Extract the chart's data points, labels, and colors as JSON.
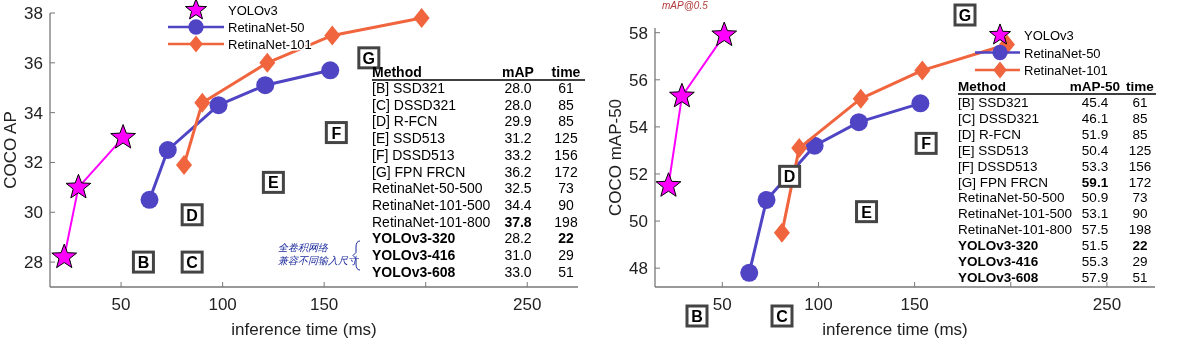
{
  "chart_data": [
    {
      "type": "line",
      "xlabel": "inference time (ms)",
      "ylabel": "COCO AP",
      "xlim": [
        15,
        275
      ],
      "ylim": [
        27,
        38
      ],
      "xticks": [
        50,
        100,
        150,
        {
          "value": 200,
          "label": null
        },
        250
      ],
      "yticks": [
        28,
        30,
        32,
        34,
        36,
        38
      ],
      "legend": "top left",
      "grid": false,
      "series": [
        {
          "name": "YOLOv3",
          "color": "#ff00ff",
          "marker": "star",
          "x": [
            22,
            29,
            51
          ],
          "values": [
            28.2,
            31.0,
            33.0
          ]
        },
        {
          "name": "RetinaNet-50",
          "color": "#4f44c4",
          "marker": "circle",
          "x": [
            64,
            73,
            98,
            121,
            153
          ],
          "values": [
            30.5,
            32.5,
            34.3,
            35.1,
            35.7
          ]
        },
        {
          "name": "RetinaNet-101",
          "color": "#f0653e",
          "marker": "diamond",
          "x": [
            81,
            90,
            122,
            154,
            198
          ],
          "values": [
            31.9,
            34.4,
            36.0,
            37.1,
            37.8
          ]
        }
      ],
      "annotations": [
        {
          "text": "B",
          "x": 61,
          "y": 28.0
        },
        {
          "text": "C",
          "x": 85,
          "y": 28.0
        },
        {
          "text": "D",
          "x": 85,
          "y": 29.9
        },
        {
          "text": "E",
          "x": 125,
          "y": 31.2
        },
        {
          "text": "F",
          "x": 156,
          "y": 33.2
        },
        {
          "text": "G",
          "x": 172,
          "y": 36.2
        },
        "全卷积网络",
        "兼容不同输入尺寸"
      ]
    },
    {
      "type": "other",
      "annotations": [
        "Method",
        "mAP",
        "time",
        "[B] SSD321",
        "28.0",
        "61",
        "[C] DSSD321",
        "28.0",
        "85",
        "[D] R-FCN",
        "29.9",
        "85",
        "[E] SSD513",
        "31.2",
        "125",
        "[F] DSSD513",
        "33.2",
        "156",
        "[G] FPN FRCN",
        "36.2",
        "172",
        "RetinaNet-50-500",
        "32.5",
        "73",
        "RetinaNet-101-500",
        "34.4",
        "90",
        "RetinaNet-101-800",
        "37.8",
        "198",
        "YOLOv3-320",
        "28.2",
        "22",
        "YOLOv3-416",
        "31.0",
        "29",
        "YOLOv3-608",
        "33.0",
        "51"
      ]
    },
    {
      "type": "line",
      "xlabel": "inference time (ms)",
      "ylabel": "COCO mAP-50",
      "xlim": [
        15,
        275
      ],
      "ylim": [
        47.2,
        58.2
      ],
      "xticks": [
        50,
        100,
        150,
        {
          "value": 200,
          "label": null
        },
        250
      ],
      "yticks": [
        48,
        50,
        52,
        54,
        56,
        58
      ],
      "legend": "top right",
      "grid": false,
      "series": [
        {
          "name": "YOLOv3",
          "color": "#ff00ff",
          "marker": "star",
          "x": [
            22,
            29,
            51
          ],
          "values": [
            51.5,
            55.3,
            57.9
          ]
        },
        {
          "name": "RetinaNet-50",
          "color": "#4f44c4",
          "marker": "circle",
          "x": [
            64,
            73,
            98,
            121,
            153
          ],
          "values": [
            47.8,
            50.9,
            53.2,
            54.2,
            55.0
          ]
        },
        {
          "name": "RetinaNet-101",
          "color": "#f0653e",
          "marker": "diamond",
          "x": [
            81,
            90,
            122,
            154,
            198
          ],
          "values": [
            49.5,
            53.1,
            55.2,
            56.4,
            57.5
          ]
        }
      ],
      "annotations": [
        {
          "text": "D",
          "x": 85,
          "y": 51.9
        },
        {
          "text": "E",
          "x": 125,
          "y": 50.4
        },
        {
          "text": "F",
          "x": 156,
          "y": 53.3
        },
        "B",
        "C",
        "G",
        "mAP@0.5"
      ]
    },
    {
      "type": "other",
      "annotations": [
        "Method",
        "mAP-50",
        "time",
        "[B] SSD321",
        "45.4",
        "61",
        "[C] DSSD321",
        "46.1",
        "85",
        "[D] R-FCN",
        "51.9",
        "85",
        "[E] SSD513",
        "50.4",
        "125",
        "[F] DSSD513",
        "53.3",
        "156",
        "[G] FPN FRCN",
        "59.1",
        "172",
        "RetinaNet-50-500",
        "50.9",
        "73",
        "RetinaNet-101-500",
        "53.1",
        "90",
        "RetinaNet-101-800",
        "57.5",
        "198",
        "YOLOv3-320",
        "51.5",
        "22",
        "YOLOv3-416",
        "55.3",
        "29",
        "YOLOv3-608",
        "57.9",
        "51"
      ]
    }
  ]
}
